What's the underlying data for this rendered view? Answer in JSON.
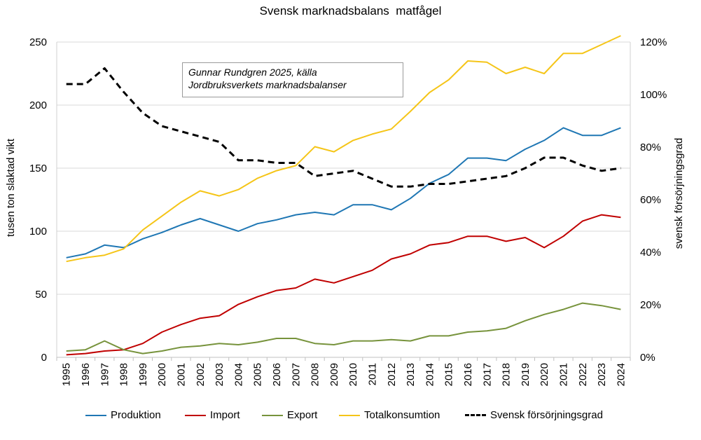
{
  "chart_data": {
    "type": "line",
    "title": "Svensk marknadsbalans  matfågel",
    "annotation_lines": [
      "Gunnar Rundgren 2025, källa",
      "Jordbruksverkets marknadsbalanser"
    ],
    "ylabel": "tusen ton slaktad vikt",
    "y2label": "svensk försörjningsgrad",
    "ylim": [
      0,
      250
    ],
    "y_ticks": [
      0,
      50,
      100,
      150,
      200,
      250
    ],
    "y2lim": [
      0,
      120
    ],
    "y2_ticks": [
      "0%",
      "20%",
      "40%",
      "60%",
      "80%",
      "100%",
      "120%"
    ],
    "x": [
      "1995",
      "1996",
      "1997",
      "1998",
      "1999",
      "2000",
      "2001",
      "2002",
      "2003",
      "2004",
      "2005",
      "2006",
      "2007",
      "2008",
      "2009",
      "2010",
      "2011",
      "2012",
      "2013",
      "2014",
      "2015",
      "2016",
      "2017",
      "2018",
      "2019",
      "2020",
      "2021",
      "2022",
      "2023",
      "2024"
    ],
    "grid": true,
    "legend_position": "bottom",
    "series": [
      {
        "name": "Produktion",
        "axis": "left",
        "color": "#1F77B4",
        "dash": false,
        "values": [
          79,
          82,
          89,
          87,
          94,
          99,
          105,
          110,
          105,
          100,
          106,
          109,
          113,
          115,
          113,
          121,
          121,
          117,
          126,
          138,
          145,
          158,
          158,
          156,
          165,
          172,
          182,
          176,
          176,
          182
        ]
      },
      {
        "name": "Import",
        "axis": "left",
        "color": "#C00000",
        "dash": false,
        "values": [
          2,
          3,
          5,
          6,
          11,
          20,
          26,
          31,
          33,
          42,
          48,
          53,
          55,
          62,
          59,
          64,
          69,
          78,
          82,
          89,
          91,
          96,
          96,
          92,
          95,
          87,
          96,
          108,
          113,
          111
        ]
      },
      {
        "name": "Export",
        "axis": "left",
        "color": "#77933C",
        "dash": false,
        "values": [
          5,
          6,
          13,
          6,
          3,
          5,
          8,
          9,
          11,
          10,
          12,
          15,
          15,
          11,
          10,
          13,
          13,
          14,
          13,
          17,
          17,
          20,
          21,
          23,
          29,
          34,
          38,
          43,
          41,
          38
        ]
      },
      {
        "name": "Totalkonsumtion",
        "axis": "left",
        "color": "#F5C518",
        "dash": false,
        "values": [
          76,
          79,
          81,
          86,
          101,
          112,
          123,
          132,
          128,
          133,
          142,
          148,
          152,
          167,
          163,
          172,
          177,
          181,
          195,
          210,
          220,
          235,
          234,
          225,
          230,
          225,
          241,
          241,
          248,
          255
        ]
      },
      {
        "name": "Svensk försörjningsgrad",
        "axis": "right",
        "color": "#000000",
        "dash": true,
        "values": [
          104,
          104,
          110,
          101,
          93,
          88,
          86,
          84,
          82,
          75,
          75,
          74,
          74,
          69,
          70,
          71,
          68,
          65,
          65,
          66,
          66,
          67,
          68,
          69,
          72,
          76,
          76,
          73,
          71,
          72
        ]
      }
    ]
  }
}
